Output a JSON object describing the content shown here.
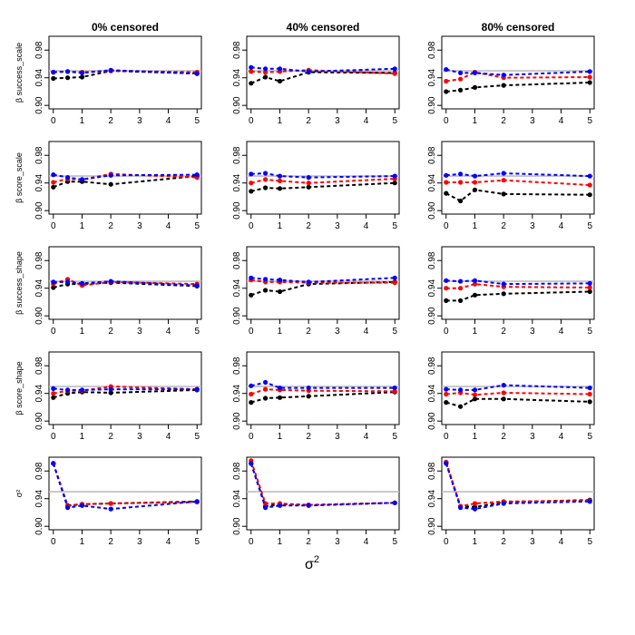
{
  "figure": {
    "column_titles": [
      "0% censored",
      "40% censored",
      "80% censored"
    ],
    "row_labels": [
      "β success_scale",
      "β score_scale",
      "β success_shape",
      "β score_shape",
      "σ²"
    ],
    "x_label": "σ",
    "x_label_sup": "2",
    "x_ticks": [
      "0",
      "1",
      "2",
      "3",
      "4",
      "5"
    ],
    "y_ticks": [
      "0.90",
      "0.94",
      "0.98"
    ],
    "reference_line": 0.95,
    "series_colors": {
      "black": "#000000",
      "red": "#ff0000",
      "blue": "#0000ff",
      "reference": "#bebebe"
    }
  },
  "chart_data": {
    "type": "line",
    "layout": "5 rows x 3 columns grid of panels",
    "x": [
      0,
      0.5,
      1,
      2,
      5
    ],
    "xlim": [
      -0.15,
      5.15
    ],
    "ylim": [
      0.895,
      1.0
    ],
    "panels": [
      {
        "row": 0,
        "col": 0,
        "series": [
          {
            "name": "black",
            "values": [
              0.939,
              0.94,
              0.941,
              0.95,
              0.946
            ]
          },
          {
            "name": "red",
            "values": [
              0.948,
              0.949,
              0.948,
              0.95,
              0.948
            ]
          },
          {
            "name": "blue",
            "values": [
              0.948,
              0.949,
              0.947,
              0.951,
              0.946
            ]
          }
        ]
      },
      {
        "row": 0,
        "col": 1,
        "series": [
          {
            "name": "black",
            "values": [
              0.932,
              0.941,
              0.935,
              0.948,
              0.947
            ]
          },
          {
            "name": "red",
            "values": [
              0.949,
              0.948,
              0.949,
              0.951,
              0.946
            ]
          },
          {
            "name": "blue",
            "values": [
              0.955,
              0.953,
              0.953,
              0.949,
              0.953
            ]
          }
        ]
      },
      {
        "row": 0,
        "col": 2,
        "series": [
          {
            "name": "black",
            "values": [
              0.92,
              0.922,
              0.926,
              0.929,
              0.933
            ]
          },
          {
            "name": "red",
            "values": [
              0.935,
              0.938,
              0.948,
              0.94,
              0.941
            ]
          },
          {
            "name": "blue",
            "values": [
              0.952,
              0.947,
              0.947,
              0.944,
              0.949
            ]
          }
        ]
      },
      {
        "row": 1,
        "col": 0,
        "series": [
          {
            "name": "black",
            "values": [
              0.934,
              0.942,
              0.942,
              0.938,
              0.95
            ]
          },
          {
            "name": "red",
            "values": [
              0.941,
              0.946,
              0.945,
              0.953,
              0.948
            ]
          },
          {
            "name": "blue",
            "values": [
              0.952,
              0.948,
              0.945,
              0.951,
              0.952
            ]
          }
        ]
      },
      {
        "row": 1,
        "col": 1,
        "series": [
          {
            "name": "black",
            "values": [
              0.928,
              0.933,
              0.932,
              0.934,
              0.94
            ]
          },
          {
            "name": "red",
            "values": [
              0.94,
              0.945,
              0.943,
              0.94,
              0.946
            ]
          },
          {
            "name": "blue",
            "values": [
              0.953,
              0.954,
              0.95,
              0.948,
              0.95
            ]
          }
        ]
      },
      {
        "row": 1,
        "col": 2,
        "series": [
          {
            "name": "black",
            "values": [
              0.925,
              0.914,
              0.93,
              0.924,
              0.923
            ]
          },
          {
            "name": "red",
            "values": [
              0.941,
              0.941,
              0.941,
              0.944,
              0.937
            ]
          },
          {
            "name": "blue",
            "values": [
              0.951,
              0.953,
              0.95,
              0.954,
              0.95
            ]
          }
        ]
      },
      {
        "row": 2,
        "col": 0,
        "series": [
          {
            "name": "black",
            "values": [
              0.941,
              0.946,
              0.946,
              0.948,
              0.943
            ]
          },
          {
            "name": "red",
            "values": [
              0.946,
              0.953,
              0.944,
              0.949,
              0.946
            ]
          },
          {
            "name": "blue",
            "values": [
              0.949,
              0.949,
              0.947,
              0.95,
              0.944
            ]
          }
        ]
      },
      {
        "row": 2,
        "col": 1,
        "series": [
          {
            "name": "black",
            "values": [
              0.93,
              0.937,
              0.935,
              0.946,
              0.949
            ]
          },
          {
            "name": "red",
            "values": [
              0.952,
              0.949,
              0.949,
              0.948,
              0.948
            ]
          },
          {
            "name": "blue",
            "values": [
              0.955,
              0.953,
              0.952,
              0.949,
              0.955
            ]
          }
        ]
      },
      {
        "row": 2,
        "col": 2,
        "series": [
          {
            "name": "black",
            "values": [
              0.922,
              0.922,
              0.93,
              0.932,
              0.935
            ]
          },
          {
            "name": "red",
            "values": [
              0.94,
              0.94,
              0.946,
              0.942,
              0.941
            ]
          },
          {
            "name": "blue",
            "values": [
              0.951,
              0.95,
              0.951,
              0.946,
              0.947
            ]
          }
        ]
      },
      {
        "row": 3,
        "col": 0,
        "series": [
          {
            "name": "black",
            "values": [
              0.934,
              0.94,
              0.942,
              0.941,
              0.945
            ]
          },
          {
            "name": "red",
            "values": [
              0.94,
              0.944,
              0.944,
              0.95,
              0.946
            ]
          },
          {
            "name": "blue",
            "values": [
              0.947,
              0.945,
              0.945,
              0.946,
              0.946
            ]
          }
        ]
      },
      {
        "row": 3,
        "col": 1,
        "series": [
          {
            "name": "black",
            "values": [
              0.927,
              0.933,
              0.934,
              0.936,
              0.942
            ]
          },
          {
            "name": "red",
            "values": [
              0.939,
              0.946,
              0.945,
              0.944,
              0.943
            ]
          },
          {
            "name": "blue",
            "values": [
              0.951,
              0.956,
              0.948,
              0.948,
              0.948
            ]
          }
        ]
      },
      {
        "row": 3,
        "col": 2,
        "series": [
          {
            "name": "black",
            "values": [
              0.927,
              0.921,
              0.932,
              0.932,
              0.928
            ]
          },
          {
            "name": "red",
            "values": [
              0.939,
              0.941,
              0.938,
              0.941,
              0.939
            ]
          },
          {
            "name": "blue",
            "values": [
              0.946,
              0.945,
              0.945,
              0.952,
              0.948
            ]
          }
        ]
      },
      {
        "row": 4,
        "col": 0,
        "series": [
          {
            "name": "black",
            "values": [
              0.991,
              0.93,
              0.932,
              0.933,
              0.936
            ]
          },
          {
            "name": "red",
            "values": [
              0.991,
              0.929,
              0.932,
              0.933,
              0.935
            ]
          },
          {
            "name": "blue",
            "values": [
              0.991,
              0.927,
              0.93,
              0.925,
              0.936
            ]
          }
        ]
      },
      {
        "row": 4,
        "col": 1,
        "series": [
          {
            "name": "black",
            "values": [
              0.991,
              0.929,
              0.932,
              0.931,
              0.934
            ]
          },
          {
            "name": "red",
            "values": [
              0.995,
              0.933,
              0.933,
              0.931,
              0.934
            ]
          },
          {
            "name": "blue",
            "values": [
              0.991,
              0.927,
              0.93,
              0.93,
              0.934
            ]
          }
        ]
      },
      {
        "row": 4,
        "col": 2,
        "series": [
          {
            "name": "black",
            "values": [
              0.992,
              0.929,
              0.928,
              0.935,
              0.938
            ]
          },
          {
            "name": "red",
            "values": [
              0.993,
              0.929,
              0.933,
              0.936,
              0.937
            ]
          },
          {
            "name": "blue",
            "values": [
              0.991,
              0.927,
              0.925,
              0.933,
              0.936
            ]
          }
        ]
      }
    ]
  }
}
